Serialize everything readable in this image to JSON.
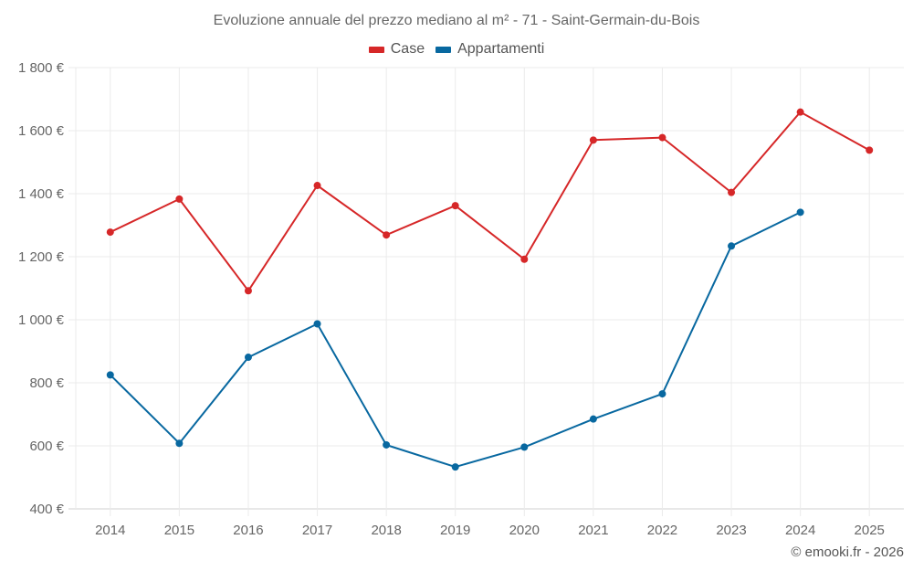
{
  "chart_data": {
    "type": "line",
    "title": "Evoluzione annuale del prezzo mediano al m² - 71 - Saint-Germain-du-Bois",
    "xlabel": "",
    "ylabel": "",
    "categories": [
      "2014",
      "2015",
      "2016",
      "2017",
      "2018",
      "2019",
      "2020",
      "2021",
      "2022",
      "2023",
      "2024",
      "2025"
    ],
    "ylim": [
      400,
      1800
    ],
    "yticks": [
      400,
      600,
      800,
      1000,
      1200,
      1400,
      1600,
      1800
    ],
    "ytick_labels": [
      "400 €",
      "600 €",
      "800 €",
      "1 000 €",
      "1 200 €",
      "1 400 €",
      "1 600 €",
      "1 800 €"
    ],
    "grid": true,
    "legend_position": "top-center",
    "series": [
      {
        "name": "Case",
        "color": "#d62728",
        "values": [
          1278,
          1383,
          1092,
          1426,
          1269,
          1362,
          1192,
          1570,
          1578,
          1404,
          1659,
          1538
        ]
      },
      {
        "name": "Appartamenti",
        "color": "#0868a0",
        "values": [
          825,
          608,
          881,
          987,
          603,
          533,
          596,
          685,
          765,
          1234,
          1341,
          null
        ]
      }
    ]
  },
  "credit": "© emooki.fr - 2026"
}
